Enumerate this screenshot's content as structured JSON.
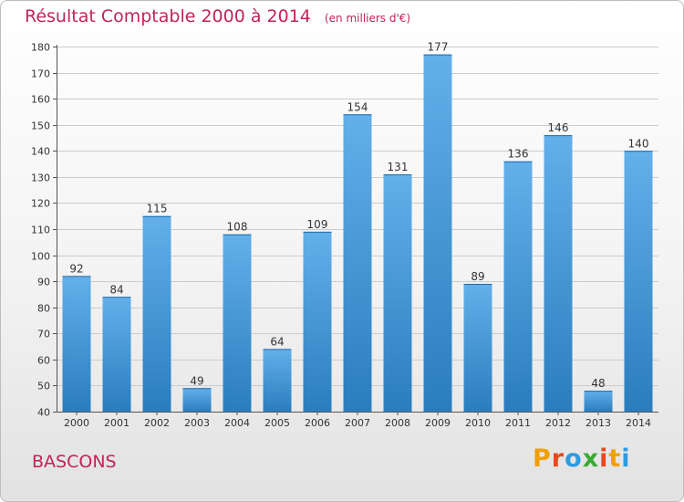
{
  "header": {
    "title": "Résultat Comptable 2000 à 2014",
    "subtitle": "(en milliers d'€)"
  },
  "footer": {
    "commune": "BASCONS",
    "logo_text": "Proxiti",
    "logo_colors": [
      "#f0a000",
      "#e8481c",
      "#2d9be0",
      "#3aaa35",
      "#e8481c",
      "#f0a000",
      "#2d9be0"
    ]
  },
  "colors": {
    "accent": "#c0245a",
    "bar_light": "#63b0ea",
    "bar_dark": "#2a7dbd",
    "grid": "#cccccc"
  },
  "chart_data": {
    "type": "bar",
    "title": "Résultat Comptable 2000 à 2014",
    "subtitle": "(en milliers d'€)",
    "categories": [
      "2000",
      "2001",
      "2002",
      "2003",
      "2004",
      "2005",
      "2006",
      "2007",
      "2008",
      "2009",
      "2010",
      "2011",
      "2012",
      "2013",
      "2014"
    ],
    "values": [
      92,
      84,
      115,
      49,
      108,
      64,
      109,
      154,
      131,
      177,
      89,
      136,
      146,
      48,
      140
    ],
    "ylim": [
      40,
      180
    ],
    "yticks": [
      40,
      50,
      60,
      70,
      80,
      90,
      100,
      110,
      120,
      130,
      140,
      150,
      160,
      170,
      180
    ],
    "grid": true,
    "xlabel": "",
    "ylabel": ""
  }
}
